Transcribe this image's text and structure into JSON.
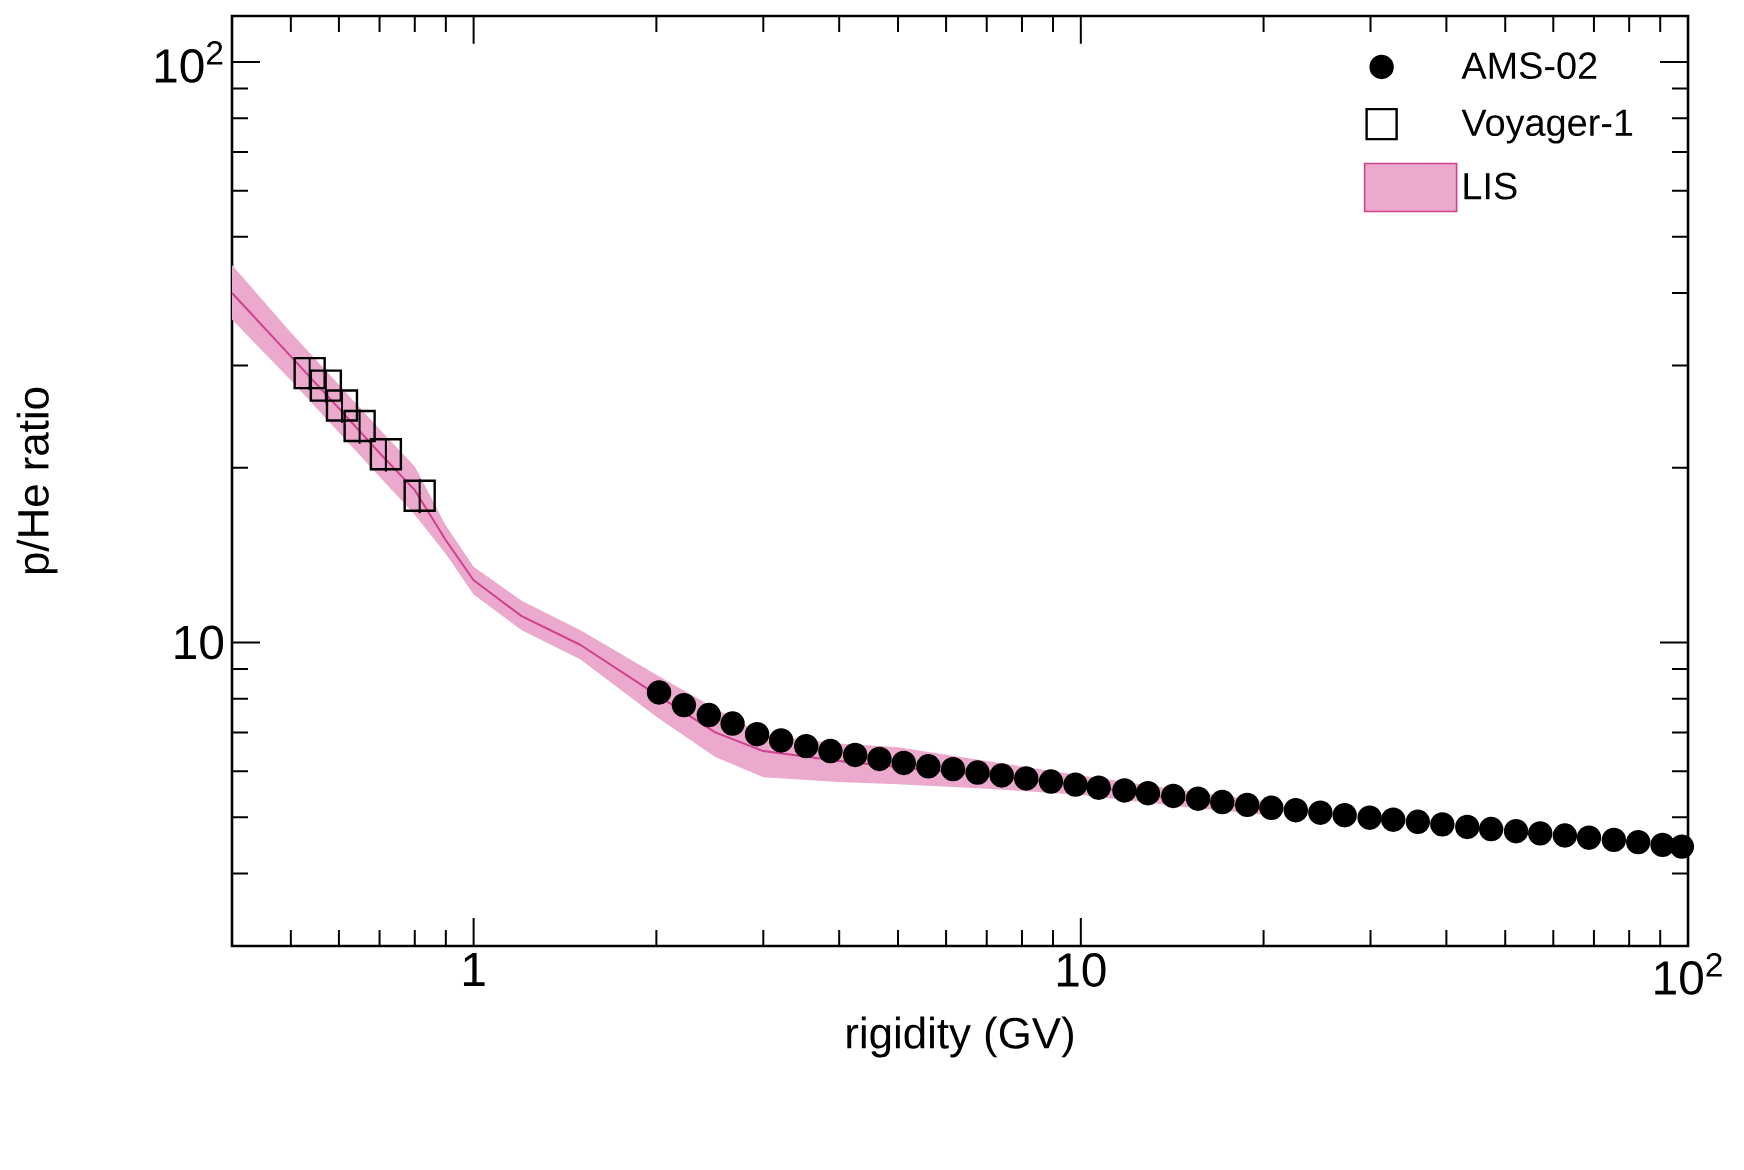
{
  "chart_data": {
    "type": "scatter",
    "xlabel": "rigidity (GV)",
    "ylabel": "p/He ratio",
    "log": "xy",
    "xlim": [
      0.4,
      100
    ],
    "ylim": [
      3,
      120
    ],
    "xticks": [
      1,
      10,
      {
        "value": 100,
        "label": "10$^{2}$"
      }
    ],
    "yticks": [
      10,
      {
        "value": 100,
        "label": "10$^{2}$"
      }
    ],
    "legend": "top right",
    "grid": false,
    "series": [
      {
        "name": "AMS-02",
        "marker": "circle",
        "color": "#000000",
        "x": [
          2.02,
          2.22,
          2.44,
          2.67,
          2.93,
          3.21,
          3.53,
          3.87,
          4.25,
          4.66,
          5.11,
          5.61,
          6.16,
          6.76,
          7.41,
          8.13,
          8.93,
          9.8,
          10.7,
          11.8,
          12.9,
          14.2,
          15.6,
          17.1,
          18.8,
          20.6,
          22.6,
          24.8,
          27.2,
          29.9,
          32.7,
          35.9,
          39.4,
          43.3,
          47.4,
          52.1,
          57.1,
          62.7,
          68.7,
          75.5,
          82.8,
          90.8,
          97.7
        ],
        "values": [
          8.2,
          7.8,
          7.5,
          7.25,
          6.95,
          6.78,
          6.63,
          6.5,
          6.4,
          6.3,
          6.2,
          6.12,
          6.05,
          5.97,
          5.9,
          5.83,
          5.76,
          5.69,
          5.62,
          5.56,
          5.5,
          5.44,
          5.38,
          5.31,
          5.25,
          5.19,
          5.14,
          5.09,
          5.04,
          4.99,
          4.95,
          4.91,
          4.86,
          4.81,
          4.77,
          4.73,
          4.69,
          4.65,
          4.61,
          4.57,
          4.53,
          4.48,
          4.45
        ]
      },
      {
        "name": "Voyager-1",
        "marker": "square",
        "color": "#000000",
        "x": [
          0.537,
          0.571,
          0.607,
          0.649,
          0.717,
          0.815
        ],
        "values": [
          29.1,
          27.7,
          25.6,
          23.6,
          21.1,
          17.9
        ],
        "errors": [
          1.9,
          1.8,
          1.7,
          1.6,
          1.4,
          1.2
        ]
      },
      {
        "name": "LIS",
        "type": "line",
        "marker": "none",
        "color": "#d0408f",
        "x": [
          0.4,
          0.5,
          0.6,
          0.7,
          0.8,
          0.9,
          1,
          1.2,
          1.5,
          2,
          2.5,
          3,
          4,
          5,
          7,
          10,
          15,
          20
        ],
        "values": [
          40,
          31.1,
          25.3,
          21.2,
          18.3,
          15.0,
          12.8,
          11.1,
          9.9,
          8.13,
          7.0,
          6.5,
          6.25,
          6.1,
          5.9,
          5.68,
          5.35,
          5.18
        ],
        "lower": [
          36,
          28.3,
          23,
          19.3,
          16.6,
          14.2,
          12.1,
          10.5,
          9.35,
          7.45,
          6.35,
          5.86,
          5.75,
          5.7,
          5.6,
          5.46,
          5.2,
          5.05
        ],
        "upper": [
          44.7,
          34.2,
          27.8,
          23.3,
          20.1,
          15.9,
          13.5,
          11.8,
          10.5,
          8.8,
          7.7,
          6.93,
          6.7,
          6.6,
          6.25,
          5.9,
          5.55,
          5.33
        ]
      }
    ]
  }
}
